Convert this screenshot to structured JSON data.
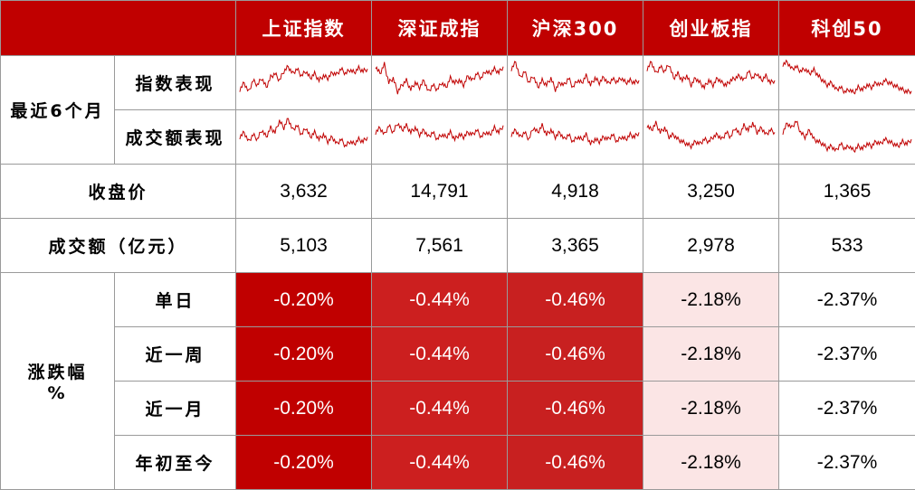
{
  "header": {
    "columns": [
      "上证指数",
      "深证成指",
      "沪深300",
      "创业板指",
      "科创50"
    ]
  },
  "rows": {
    "six_month_label": "最近6个月",
    "index_perf_label": "指数表现",
    "turnover_perf_label": "成交额表现",
    "close_label": "收盘价",
    "turnover_label": "成交额（亿元）",
    "change_label_line1": "涨跌幅",
    "change_label_line2": "%",
    "periods": [
      "单日",
      "近一周",
      "近一月",
      "年初至今"
    ]
  },
  "close_prices": [
    "3,632",
    "14,791",
    "4,918",
    "3,250",
    "1,365"
  ],
  "turnover": [
    "5,103",
    "7,561",
    "3,365",
    "2,978",
    "533"
  ],
  "changes": [
    [
      "-0.20%",
      "-0.44%",
      "-0.46%",
      "-2.18%",
      "-2.37%"
    ],
    [
      "-0.20%",
      "-0.44%",
      "-0.46%",
      "-2.18%",
      "-2.37%"
    ],
    [
      "-0.20%",
      "-0.44%",
      "-0.46%",
      "-2.18%",
      "-2.37%"
    ],
    [
      "-0.20%",
      "-0.44%",
      "-0.46%",
      "-2.18%",
      "-2.37%"
    ]
  ],
  "colors": {
    "header_bg": "#c00000",
    "col_fills": [
      "#c00000",
      "#cc1f1f",
      "#c82020",
      "#fbe5e5",
      "#ffffff"
    ],
    "col_text": [
      "#ffffff",
      "#ffffff",
      "#ffffff",
      "#000000",
      "#000000"
    ],
    "sparkline": "#c00000"
  },
  "sparklines": {
    "index": [
      [
        0.35,
        0.5,
        0.3,
        0.55,
        0.45,
        0.6,
        0.4,
        0.62,
        0.7,
        0.55,
        0.75,
        0.85,
        0.7,
        0.8,
        0.65,
        0.75,
        0.6,
        0.7,
        0.55,
        0.65,
        0.6,
        0.72,
        0.68,
        0.8,
        0.7,
        0.78,
        0.72,
        0.82,
        0.75,
        0.8
      ],
      [
        0.85,
        0.7,
        0.9,
        0.5,
        0.6,
        0.3,
        0.45,
        0.55,
        0.35,
        0.5,
        0.4,
        0.55,
        0.3,
        0.45,
        0.35,
        0.5,
        0.4,
        0.6,
        0.5,
        0.55,
        0.45,
        0.65,
        0.55,
        0.7,
        0.6,
        0.75,
        0.7,
        0.8,
        0.72,
        0.85
      ],
      [
        0.8,
        0.95,
        0.6,
        0.75,
        0.5,
        0.65,
        0.4,
        0.55,
        0.45,
        0.6,
        0.35,
        0.5,
        0.45,
        0.6,
        0.4,
        0.55,
        0.5,
        0.65,
        0.45,
        0.6,
        0.5,
        0.62,
        0.48,
        0.58,
        0.52,
        0.6,
        0.5,
        0.55,
        0.5,
        0.55
      ],
      [
        0.8,
        0.95,
        0.7,
        0.85,
        0.75,
        0.9,
        0.6,
        0.7,
        0.55,
        0.65,
        0.45,
        0.6,
        0.5,
        0.4,
        0.55,
        0.45,
        0.6,
        0.5,
        0.45,
        0.55,
        0.6,
        0.65,
        0.55,
        0.75,
        0.6,
        0.7,
        0.55,
        0.65,
        0.5,
        0.55
      ],
      [
        0.9,
        0.95,
        0.8,
        0.85,
        0.75,
        0.8,
        0.7,
        0.78,
        0.65,
        0.55,
        0.45,
        0.5,
        0.35,
        0.4,
        0.3,
        0.35,
        0.28,
        0.4,
        0.35,
        0.45,
        0.4,
        0.5,
        0.45,
        0.55,
        0.5,
        0.45,
        0.4,
        0.35,
        0.3,
        0.32
      ]
    ],
    "turnover": [
      [
        0.5,
        0.6,
        0.4,
        0.55,
        0.45,
        0.65,
        0.5,
        0.7,
        0.6,
        0.85,
        0.7,
        0.9,
        0.65,
        0.75,
        0.55,
        0.7,
        0.5,
        0.6,
        0.45,
        0.55,
        0.4,
        0.5,
        0.35,
        0.45,
        0.3,
        0.4,
        0.35,
        0.45,
        0.4,
        0.5
      ],
      [
        0.6,
        0.7,
        0.55,
        0.75,
        0.6,
        0.8,
        0.65,
        0.75,
        0.6,
        0.7,
        0.55,
        0.65,
        0.5,
        0.6,
        0.45,
        0.55,
        0.5,
        0.6,
        0.45,
        0.55,
        0.5,
        0.6,
        0.55,
        0.65,
        0.5,
        0.6,
        0.55,
        0.7,
        0.6,
        0.75
      ],
      [
        0.55,
        0.65,
        0.5,
        0.6,
        0.45,
        0.7,
        0.6,
        0.75,
        0.55,
        0.65,
        0.5,
        0.6,
        0.45,
        0.55,
        0.4,
        0.5,
        0.45,
        0.55,
        0.35,
        0.45,
        0.4,
        0.5,
        0.45,
        0.55,
        0.4,
        0.5,
        0.45,
        0.55,
        0.5,
        0.6
      ],
      [
        0.75,
        0.65,
        0.8,
        0.6,
        0.7,
        0.5,
        0.55,
        0.45,
        0.4,
        0.35,
        0.3,
        0.4,
        0.35,
        0.45,
        0.4,
        0.5,
        0.55,
        0.45,
        0.6,
        0.5,
        0.7,
        0.55,
        0.75,
        0.65,
        0.8,
        0.6,
        0.7,
        0.55,
        0.65,
        0.6
      ],
      [
        0.6,
        0.8,
        0.7,
        0.85,
        0.6,
        0.5,
        0.65,
        0.45,
        0.4,
        0.35,
        0.25,
        0.3,
        0.2,
        0.35,
        0.25,
        0.3,
        0.2,
        0.3,
        0.25,
        0.35,
        0.3,
        0.4,
        0.35,
        0.45,
        0.4,
        0.35,
        0.3,
        0.4,
        0.35,
        0.45
      ]
    ]
  }
}
